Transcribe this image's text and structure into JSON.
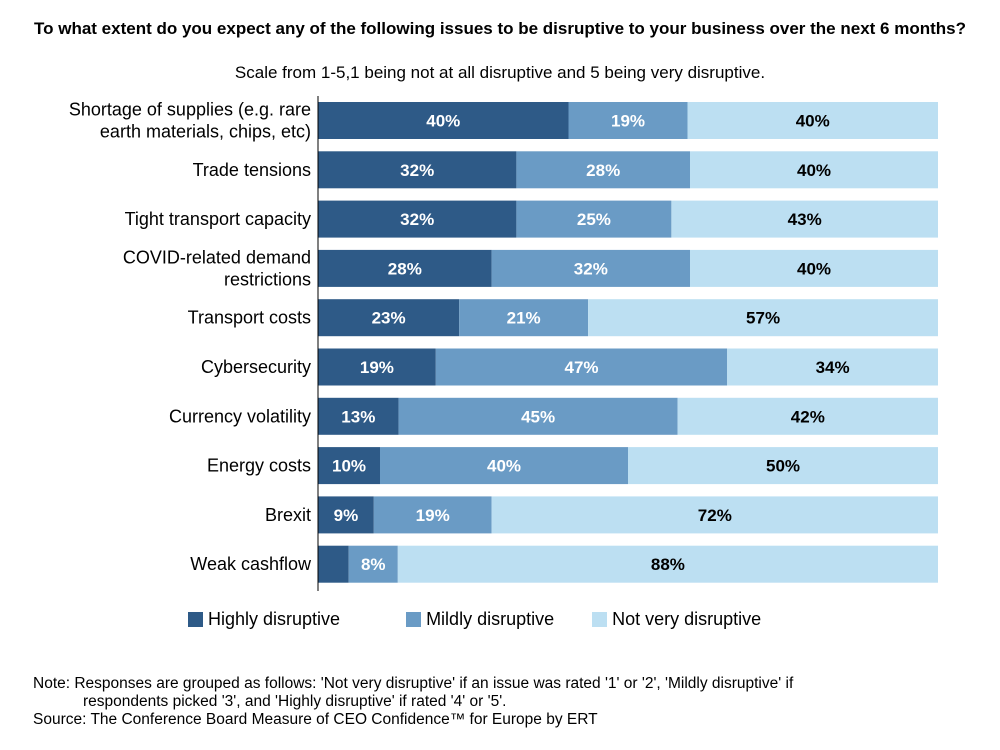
{
  "chart_data": {
    "type": "bar",
    "orientation": "horizontal",
    "stacked": "percent",
    "title": "To what extent do you expect any of the following issues to be disruptive to your business over the next 6 months?",
    "subtitle": "Scale from 1-5,1 being not at all disruptive and 5 being very disruptive.",
    "categories": [
      [
        "Shortage of supplies (e.g. rare",
        "earth materials, chips, etc)"
      ],
      [
        "Trade tensions"
      ],
      [
        "Tight transport capacity"
      ],
      [
        "COVID-related demand",
        "restrictions"
      ],
      [
        "Transport costs"
      ],
      [
        "Cybersecurity"
      ],
      [
        "Currency volatility"
      ],
      [
        "Energy costs"
      ],
      [
        "Brexit"
      ],
      [
        "Weak cashflow"
      ]
    ],
    "series": [
      {
        "name": "Highly disruptive",
        "color": "#2e5a87",
        "label_color": "#ffffff",
        "values": [
          40,
          32,
          32,
          28,
          23,
          19,
          13,
          10,
          9,
          5
        ]
      },
      {
        "name": "Mildly disruptive",
        "color": "#6a9bc5",
        "label_color": "#ffffff",
        "values": [
          19,
          28,
          25,
          32,
          21,
          47,
          45,
          40,
          19,
          8
        ]
      },
      {
        "name": "Not very disruptive",
        "color": "#bcdff2",
        "label_color": "#000000",
        "values": [
          40,
          40,
          43,
          40,
          57,
          34,
          42,
          50,
          72,
          88
        ]
      }
    ],
    "hidden_labels": [
      [
        9,
        0
      ]
    ],
    "legend_position": "bottom",
    "grid": false
  },
  "note_line1": "Note: Responses are grouped as follows: 'Not very disruptive' if an issue was rated '1' or '2', 'Mildly disruptive' if",
  "note_line2": "respondents picked '3', and 'Highly disruptive' if rated '4' or '5'.",
  "source": "Source: The Conference Board Measure of CEO Confidence™ for Europe by ERT"
}
